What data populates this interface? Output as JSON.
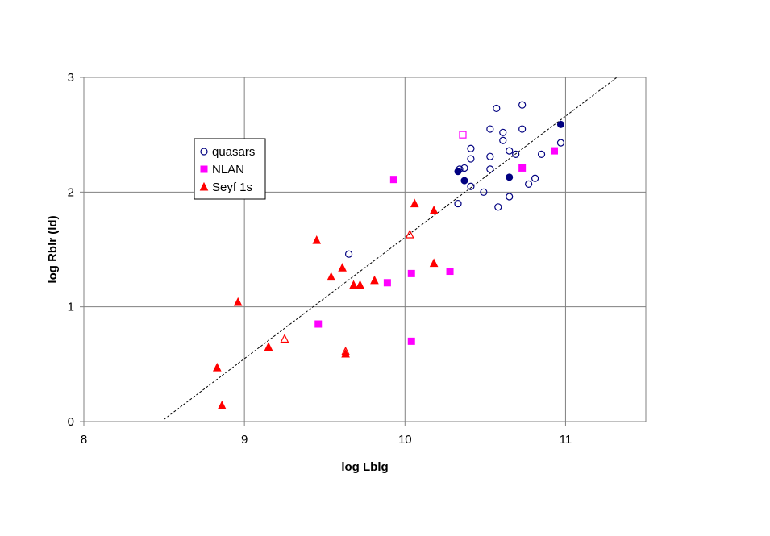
{
  "chart_data": {
    "type": "scatter",
    "title": "",
    "xlabel": "log Lblg",
    "ylabel": "log Rblr (ld)",
    "xlim": [
      8,
      11.5
    ],
    "ylim": [
      0,
      3
    ],
    "x_ticks": [
      "8",
      "9",
      "10",
      "11"
    ],
    "y_ticks": [
      "0",
      "1",
      "2",
      "3"
    ],
    "grid": "major",
    "legend_position": "upper-left inside plot",
    "legend": [
      "quasars",
      "NLAN",
      "Seyf 1s"
    ],
    "colors": {
      "quasars": "#000080",
      "NLAN": "#ff00ff",
      "seyf": "#ff0000",
      "fit_line": "#000000"
    },
    "series": [
      {
        "name": "quasars",
        "marker": "circle-open",
        "points": [
          [
            9.65,
            1.46
          ],
          [
            10.33,
            1.9
          ],
          [
            10.34,
            2.2
          ],
          [
            10.37,
            2.21
          ],
          [
            10.41,
            2.05
          ],
          [
            10.41,
            2.29
          ],
          [
            10.41,
            2.38
          ],
          [
            10.49,
            2.0
          ],
          [
            10.53,
            2.55
          ],
          [
            10.53,
            2.31
          ],
          [
            10.53,
            2.2
          ],
          [
            10.57,
            2.73
          ],
          [
            10.58,
            1.87
          ],
          [
            10.61,
            2.52
          ],
          [
            10.61,
            2.45
          ],
          [
            10.65,
            2.36
          ],
          [
            10.65,
            1.96
          ],
          [
            10.69,
            2.33
          ],
          [
            10.73,
            2.76
          ],
          [
            10.73,
            2.55
          ],
          [
            10.77,
            2.07
          ],
          [
            10.81,
            2.12
          ],
          [
            10.85,
            2.33
          ],
          [
            10.97,
            2.43
          ]
        ]
      },
      {
        "name": "quasars (filled)",
        "marker": "circle-filled",
        "points": [
          [
            10.33,
            2.18
          ],
          [
            10.37,
            2.1
          ],
          [
            10.65,
            2.13
          ],
          [
            10.97,
            2.59
          ]
        ]
      },
      {
        "name": "NLAN",
        "marker": "square-filled",
        "points": [
          [
            9.46,
            0.85
          ],
          [
            9.89,
            1.21
          ],
          [
            9.93,
            2.11
          ],
          [
            10.04,
            0.7
          ],
          [
            10.04,
            1.29
          ],
          [
            10.28,
            1.31
          ],
          [
            10.73,
            2.21
          ],
          [
            10.93,
            2.36
          ]
        ]
      },
      {
        "name": "NLAN (open)",
        "marker": "square-open",
        "points": [
          [
            10.36,
            2.5
          ]
        ]
      },
      {
        "name": "Seyf 1s",
        "marker": "triangle-filled",
        "points": [
          [
            8.83,
            0.47
          ],
          [
            8.86,
            0.14
          ],
          [
            8.96,
            1.04
          ],
          [
            9.15,
            0.65
          ],
          [
            9.45,
            1.58
          ],
          [
            9.54,
            1.26
          ],
          [
            9.61,
            1.34
          ],
          [
            9.63,
            0.59
          ],
          [
            9.68,
            1.19
          ],
          [
            9.72,
            1.19
          ],
          [
            9.81,
            1.23
          ],
          [
            10.06,
            1.9
          ],
          [
            10.18,
            1.38
          ],
          [
            10.18,
            1.84
          ]
        ]
      },
      {
        "name": "Seyf 1s (open)",
        "marker": "triangle-open",
        "points": [
          [
            9.25,
            0.72
          ],
          [
            9.63,
            0.61
          ],
          [
            10.03,
            1.63
          ]
        ]
      }
    ],
    "fit_line": {
      "style": "dashed",
      "points": [
        [
          8.5,
          0.02
        ],
        [
          11.32,
          3.0
        ]
      ]
    }
  }
}
